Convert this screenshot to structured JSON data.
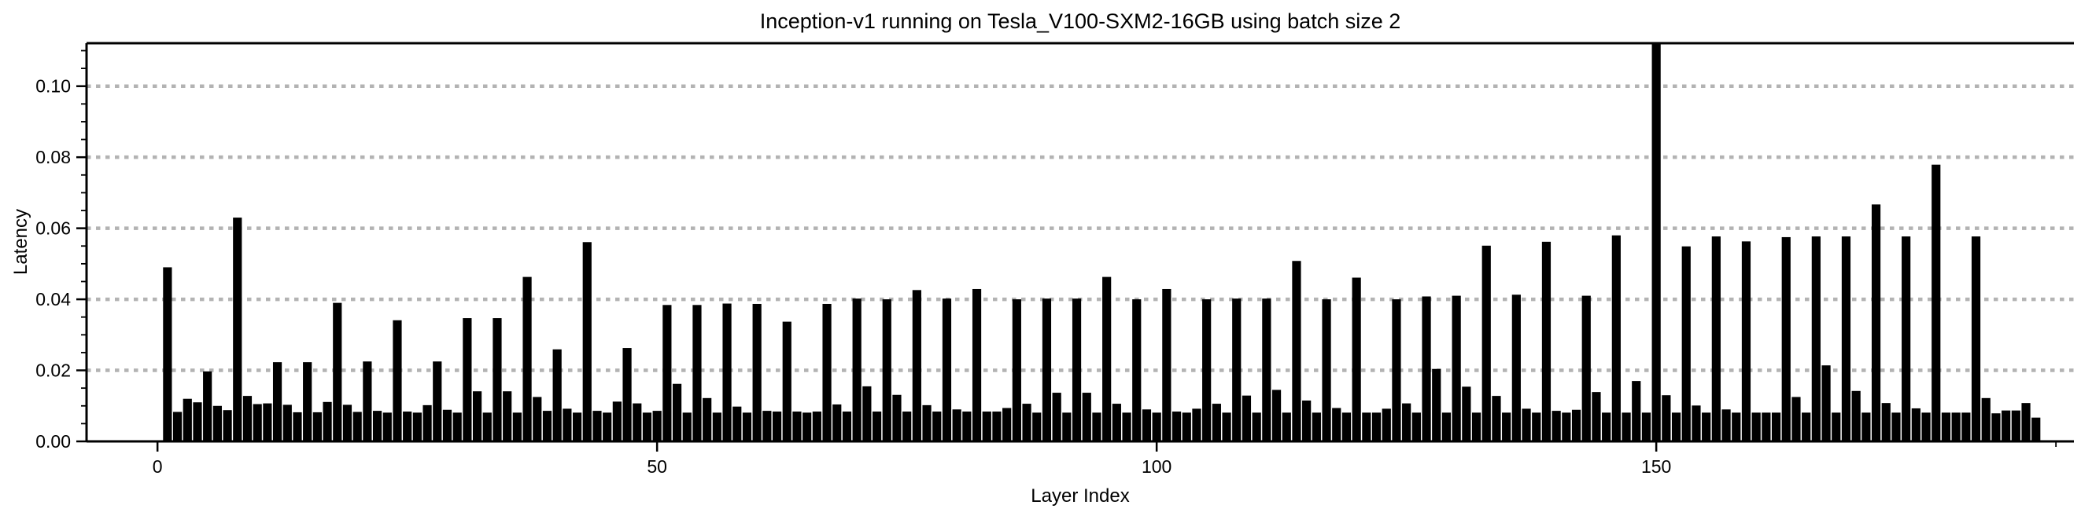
{
  "chart_data": {
    "type": "bar",
    "title": "Inception-v1 running on Tesla_V100-SXM2-16GB using batch size 2",
    "xlabel": "Layer Index",
    "ylabel": "Latency",
    "x_start_index": 1,
    "values": [
      0.049,
      0.0083,
      0.012,
      0.011,
      0.0197,
      0.01,
      0.0088,
      0.063,
      0.0128,
      0.0105,
      0.0107,
      0.0223,
      0.0103,
      0.0082,
      0.0223,
      0.0082,
      0.0111,
      0.039,
      0.0103,
      0.0083,
      0.0225,
      0.0086,
      0.0081,
      0.0341,
      0.0084,
      0.0081,
      0.0102,
      0.0225,
      0.0089,
      0.0081,
      0.0347,
      0.0141,
      0.0081,
      0.0347,
      0.0141,
      0.0081,
      0.0463,
      0.0125,
      0.0086,
      0.0259,
      0.0092,
      0.0081,
      0.0561,
      0.0086,
      0.0081,
      0.0112,
      0.0263,
      0.0107,
      0.0081,
      0.0086,
      0.0384,
      0.0162,
      0.0081,
      0.0384,
      0.0122,
      0.0081,
      0.0388,
      0.0098,
      0.0081,
      0.0387,
      0.0086,
      0.0084,
      0.0337,
      0.0084,
      0.0081,
      0.0084,
      0.0387,
      0.0104,
      0.0084,
      0.0402,
      0.0155,
      0.0084,
      0.04,
      0.0131,
      0.0084,
      0.0426,
      0.0102,
      0.0084,
      0.0402,
      0.009,
      0.0084,
      0.0429,
      0.0084,
      0.0084,
      0.0094,
      0.04,
      0.0106,
      0.0081,
      0.0402,
      0.0137,
      0.0081,
      0.0402,
      0.0137,
      0.0081,
      0.0463,
      0.0106,
      0.0081,
      0.04,
      0.009,
      0.0081,
      0.0429,
      0.0084,
      0.0081,
      0.0092,
      0.04,
      0.0106,
      0.0081,
      0.0402,
      0.0129,
      0.0081,
      0.0402,
      0.0145,
      0.0081,
      0.0508,
      0.0115,
      0.0081,
      0.04,
      0.0094,
      0.0081,
      0.0461,
      0.0081,
      0.0081,
      0.0092,
      0.04,
      0.0107,
      0.0081,
      0.0408,
      0.0204,
      0.0081,
      0.041,
      0.0154,
      0.0081,
      0.0551,
      0.0128,
      0.0081,
      0.0413,
      0.0092,
      0.0081,
      0.0562,
      0.0086,
      0.0081,
      0.0089,
      0.041,
      0.0139,
      0.0081,
      0.058,
      0.0081,
      0.017,
      0.0081,
      0.112,
      0.013,
      0.0081,
      0.0549,
      0.0101,
      0.0081,
      0.0577,
      0.009,
      0.0081,
      0.0563,
      0.0081,
      0.0081,
      0.0081,
      0.0575,
      0.0125,
      0.0081,
      0.0577,
      0.0214,
      0.0081,
      0.0577,
      0.0142,
      0.0081,
      0.0667,
      0.0108,
      0.0081,
      0.0577,
      0.0093,
      0.0081,
      0.0779,
      0.0081,
      0.0081,
      0.0081,
      0.0577,
      0.0122,
      0.0079,
      0.0087,
      0.0087,
      0.0108,
      0.0067
    ],
    "clipped_bars": [
      150
    ],
    "xticks": [
      0,
      50,
      100,
      150
    ],
    "xtick_labels": [
      "0",
      "50",
      "100",
      "150"
    ],
    "x_end_minor_tick": 190,
    "yticks": [
      0,
      0.02,
      0.04,
      0.06,
      0.08,
      0.1
    ],
    "ytick_labels": [
      "0.00",
      "0.02",
      "0.04",
      "0.06",
      "0.08",
      "0.10"
    ],
    "y_minor_tick_step": 0.005,
    "xlim": [
      -7.1,
      191.8
    ],
    "ylim": [
      0,
      0.1121
    ],
    "grid": "horizontal-dotted",
    "legend": "none",
    "bar_color": "#000000",
    "grid_color": "#b3b3b3",
    "axis_color": "#000000",
    "background": "#ffffff"
  }
}
